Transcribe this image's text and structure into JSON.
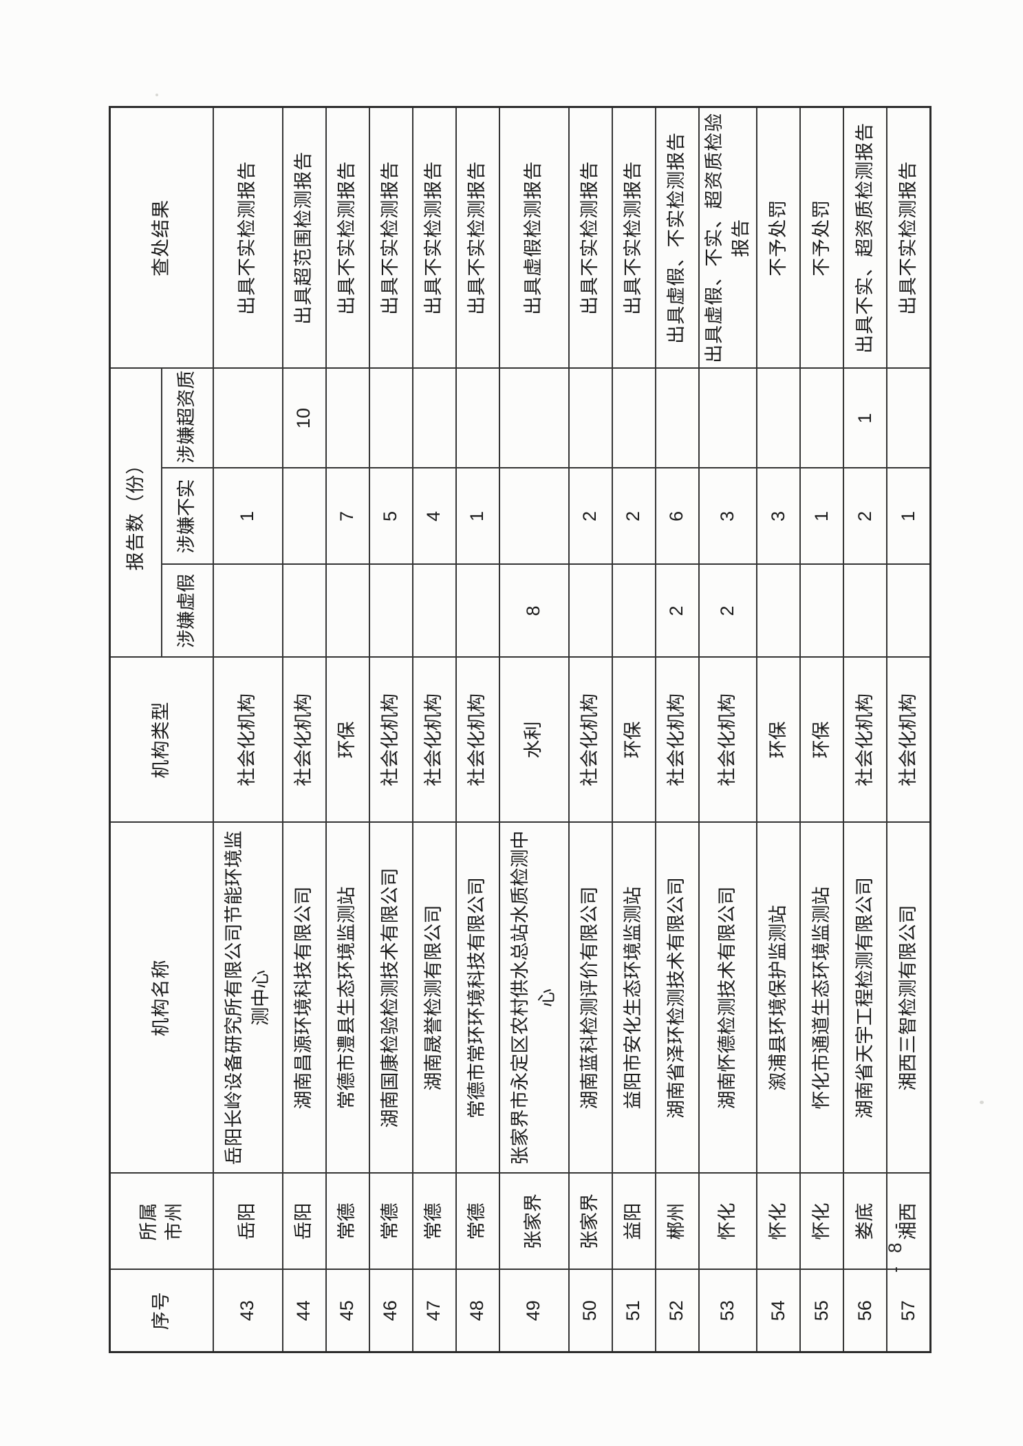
{
  "page": {
    "page_number": "- 8 -"
  },
  "table": {
    "headers": {
      "no": "序号",
      "city": "所属市州",
      "name": "机构名称",
      "type": "机构类型",
      "report_count_group": "报告数（份）",
      "suspected_false": "涉嫌虚假",
      "suspected_untrue": "涉嫌不实",
      "suspected_beyond_qualification": "涉嫌超资质",
      "result": "查处结果"
    },
    "rows": [
      {
        "no": "43",
        "city": "岳阳",
        "name": "岳阳长岭设备研究所有限公司节能环境监测中心",
        "type": "社会化机构",
        "suspected_false": "",
        "suspected_untrue": "1",
        "suspected_beyond_qualification": "",
        "result": "出具不实检测报告"
      },
      {
        "no": "44",
        "city": "岳阳",
        "name": "湖南昌源环境科技有限公司",
        "type": "社会化机构",
        "suspected_false": "",
        "suspected_untrue": "",
        "suspected_beyond_qualification": "10",
        "result": "出具超范围检测报告"
      },
      {
        "no": "45",
        "city": "常德",
        "name": "常德市澧县生态环境监测站",
        "type": "环保",
        "suspected_false": "",
        "suspected_untrue": "7",
        "suspected_beyond_qualification": "",
        "result": "出具不实检测报告"
      },
      {
        "no": "46",
        "city": "常德",
        "name": "湖南国康检验检测技术有限公司",
        "type": "社会化机构",
        "suspected_false": "",
        "suspected_untrue": "5",
        "suspected_beyond_qualification": "",
        "result": "出具不实检测报告"
      },
      {
        "no": "47",
        "city": "常德",
        "name": "湖南晟誉检测有限公司",
        "type": "社会化机构",
        "suspected_false": "",
        "suspected_untrue": "4",
        "suspected_beyond_qualification": "",
        "result": "出具不实检测报告"
      },
      {
        "no": "48",
        "city": "常德",
        "name": "常德市常环环境科技有限公司",
        "type": "社会化机构",
        "suspected_false": "",
        "suspected_untrue": "1",
        "suspected_beyond_qualification": "",
        "result": "出具不实检测报告"
      },
      {
        "no": "49",
        "city": "张家界",
        "name": "张家界市永定区农村供水总站水质检测中心",
        "type": "水利",
        "suspected_false": "8",
        "suspected_untrue": "",
        "suspected_beyond_qualification": "",
        "result": "出具虚假检测报告"
      },
      {
        "no": "50",
        "city": "张家界",
        "name": "湖南蓝科检测评价有限公司",
        "type": "社会化机构",
        "suspected_false": "",
        "suspected_untrue": "2",
        "suspected_beyond_qualification": "",
        "result": "出具不实检测报告"
      },
      {
        "no": "51",
        "city": "益阳",
        "name": "益阳市安化生态环境监测站",
        "type": "环保",
        "suspected_false": "",
        "suspected_untrue": "2",
        "suspected_beyond_qualification": "",
        "result": "出具不实检测报告"
      },
      {
        "no": "52",
        "city": "郴州",
        "name": "湖南省泽环检测技术有限公司",
        "type": "社会化机构",
        "suspected_false": "2",
        "suspected_untrue": "6",
        "suspected_beyond_qualification": "",
        "result": "出具虚假、不实检测报告"
      },
      {
        "no": "53",
        "city": "怀化",
        "name": "湖南怀德检测技术有限公司",
        "type": "社会化机构",
        "suspected_false": "2",
        "suspected_untrue": "3",
        "suspected_beyond_qualification": "",
        "result": "出具虚假、不实、超资质检验报告"
      },
      {
        "no": "54",
        "city": "怀化",
        "name": "溆浦县环境保护监测站",
        "type": "环保",
        "suspected_false": "",
        "suspected_untrue": "3",
        "suspected_beyond_qualification": "",
        "result": "不予处罚"
      },
      {
        "no": "55",
        "city": "怀化",
        "name": "怀化市通道生态环境监测站",
        "type": "环保",
        "suspected_false": "",
        "suspected_untrue": "1",
        "suspected_beyond_qualification": "",
        "result": "不予处罚"
      },
      {
        "no": "56",
        "city": "娄底",
        "name": "湖南省天宇工程检测有限公司",
        "type": "社会化机构",
        "suspected_false": "",
        "suspected_untrue": "2",
        "suspected_beyond_qualification": "1",
        "result": "出具不实、超资质检测报告"
      },
      {
        "no": "57",
        "city": "湘西",
        "name": "湘西三智检测有限公司",
        "type": "社会化机构",
        "suspected_false": "",
        "suspected_untrue": "1",
        "suspected_beyond_qualification": "",
        "result": "出具不实检测报告"
      }
    ]
  }
}
